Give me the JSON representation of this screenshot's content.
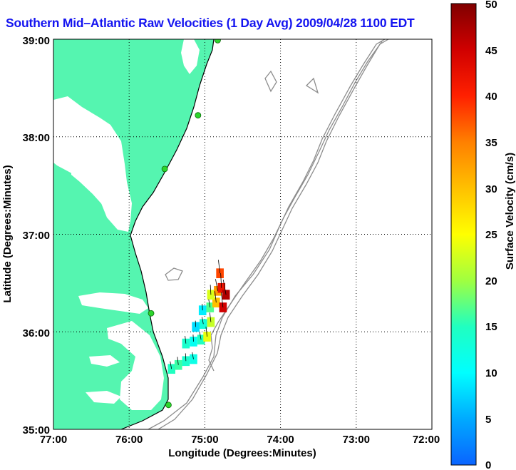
{
  "title": "Southern Mid–Atlantic Raw Velocities (1 Day Avg) 2009/04/28 1100 EDT",
  "map": {
    "x_axis_label": "Longitude (Degrees:Minutes)",
    "y_axis_label": "Latitude (Degrees:Minutes)",
    "x_ticks": [
      "77:00",
      "76:00",
      "75:00",
      "74:00",
      "73:00",
      "72:00"
    ],
    "y_ticks": [
      "39:00",
      "38:00",
      "37:00",
      "36:00",
      "35:00"
    ],
    "lon_range": [
      -77,
      -72
    ],
    "lat_range": [
      35,
      39
    ],
    "grid": "dotted",
    "land_color": "#55f5b0",
    "coast_color": "#000000",
    "bathymetry_color": "#8c8c8c",
    "site_marker_color": "#2dd52d"
  },
  "colorbar": {
    "label": "Surface Velocity (cm/s)",
    "ticks": [
      "0",
      "5",
      "10",
      "15",
      "20",
      "25",
      "30",
      "35",
      "40",
      "45",
      "50"
    ],
    "range": [
      0,
      50
    ]
  },
  "chart_data": {
    "type": "heatmap",
    "title": "Southern Mid–Atlantic Raw Velocities (1 Day Avg) 2009/04/28 1100 EDT",
    "xlabel": "Longitude (Degrees:Minutes)",
    "ylabel": "Latitude (Degrees:Minutes)",
    "xlim": [
      -77,
      -72
    ],
    "ylim": [
      35,
      39
    ],
    "value_label": "Surface Velocity (cm/s)",
    "value_range": [
      0,
      50
    ],
    "cells": [
      {
        "lon": -75.44,
        "lat": 35.62,
        "speed": 15
      },
      {
        "lon": -75.35,
        "lat": 35.66,
        "speed": 16
      },
      {
        "lon": -75.25,
        "lat": 35.7,
        "speed": 14
      },
      {
        "lon": -75.15,
        "lat": 35.72,
        "speed": 12
      },
      {
        "lon": -75.25,
        "lat": 35.88,
        "speed": 14
      },
      {
        "lon": -75.15,
        "lat": 35.9,
        "speed": 11
      },
      {
        "lon": -75.05,
        "lat": 35.92,
        "speed": 15
      },
      {
        "lon": -74.97,
        "lat": 35.95,
        "speed": 24
      },
      {
        "lon": -75.12,
        "lat": 36.05,
        "speed": 8
      },
      {
        "lon": -75.02,
        "lat": 36.08,
        "speed": 13
      },
      {
        "lon": -74.92,
        "lat": 36.1,
        "speed": 22
      },
      {
        "lon": -75.03,
        "lat": 36.22,
        "speed": 9
      },
      {
        "lon": -74.93,
        "lat": 36.25,
        "speed": 17
      },
      {
        "lon": -74.85,
        "lat": 36.3,
        "speed": 30
      },
      {
        "lon": -74.92,
        "lat": 36.38,
        "speed": 23
      },
      {
        "lon": -74.83,
        "lat": 36.42,
        "speed": 33
      },
      {
        "lon": -74.76,
        "lat": 36.25,
        "speed": 45
      },
      {
        "lon": -74.78,
        "lat": 36.45,
        "speed": 42
      },
      {
        "lon": -74.72,
        "lat": 36.38,
        "speed": 47
      },
      {
        "lon": -74.8,
        "lat": 36.6,
        "speed": 38
      }
    ],
    "stations": [
      {
        "lon": -74.83,
        "lat": 38.99
      },
      {
        "lon": -75.09,
        "lat": 38.22
      },
      {
        "lon": -75.53,
        "lat": 37.67
      },
      {
        "lon": -75.71,
        "lat": 36.19
      },
      {
        "lon": -75.48,
        "lat": 35.25
      }
    ]
  }
}
